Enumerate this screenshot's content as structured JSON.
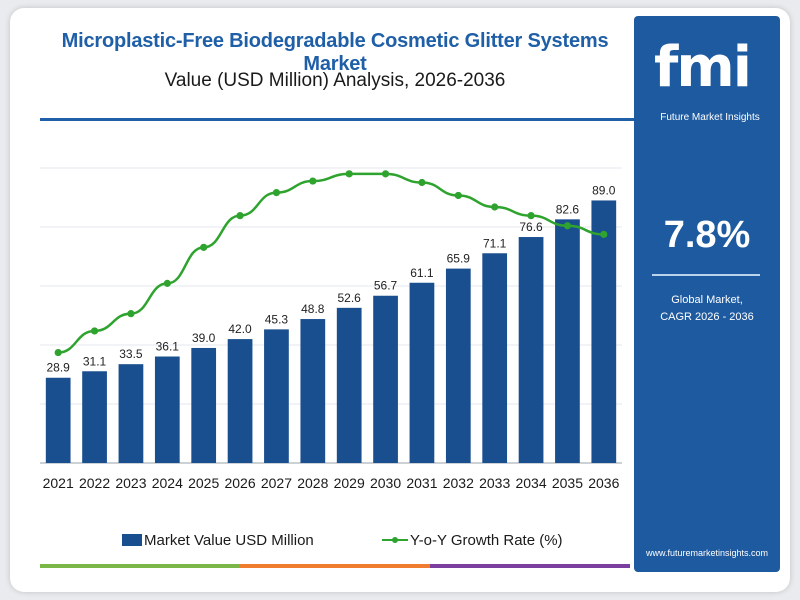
{
  "header": {
    "title": "Microplastic-Free Biodegradable Cosmetic Glitter Systems Market",
    "subtitle": "Value (USD Million) Analysis, 2026-2036"
  },
  "sidebar": {
    "logo_text": "fmi",
    "brand": "Future Market Insights",
    "cagr_value": "7.8%",
    "cagr_label_line1": "Global Market,",
    "cagr_label_line2": "CAGR 2026 - 2036",
    "website": "www.futuremarketinsights.com"
  },
  "legend": {
    "bars": "Market Value USD Million",
    "line": "Y-o-Y Growth Rate (%)"
  },
  "colors": {
    "bar": "#1a4f8f",
    "line": "#2ea32e",
    "title": "#1f5fa8",
    "sidebar": "#1e5aa0"
  },
  "chart_data": {
    "type": "bar",
    "categories": [
      "2021",
      "2022",
      "2023",
      "2024",
      "2025",
      "2026",
      "2027",
      "2028",
      "2029",
      "2030",
      "2031",
      "2032",
      "2033",
      "2034",
      "2035",
      "2036"
    ],
    "series": [
      {
        "name": "Market Value USD Million",
        "type": "bar",
        "values": [
          28.9,
          31.1,
          33.5,
          36.1,
          39.0,
          42.0,
          45.3,
          48.8,
          52.6,
          56.7,
          61.1,
          65.9,
          71.1,
          76.6,
          82.6,
          89.0
        ],
        "labels": [
          "28.9",
          "31.1",
          "33.5",
          "36.1",
          "39.0",
          "42.0",
          "45.3",
          "48.8",
          "52.6",
          "56.7",
          "61.1",
          "65.9",
          "71.1",
          "76.6",
          "82.6",
          "89.0"
        ]
      },
      {
        "name": "Y-o-Y Growth Rate (%)",
        "type": "line",
        "values": [
          7.45,
          7.6,
          7.72,
          7.93,
          8.18,
          8.4,
          8.56,
          8.64,
          8.69,
          8.69,
          8.63,
          8.54,
          8.46,
          8.4,
          8.33,
          8.27
        ]
      }
    ],
    "title": "Microplastic-Free Biodegradable Cosmetic Glitter Systems Market",
    "subtitle": "Value (USD Million) Analysis, 2026-2036",
    "ylim": [
      0,
      100
    ],
    "y2lim": [
      7.1,
      8.8
    ],
    "grid": true,
    "legend_position": "bottom"
  }
}
